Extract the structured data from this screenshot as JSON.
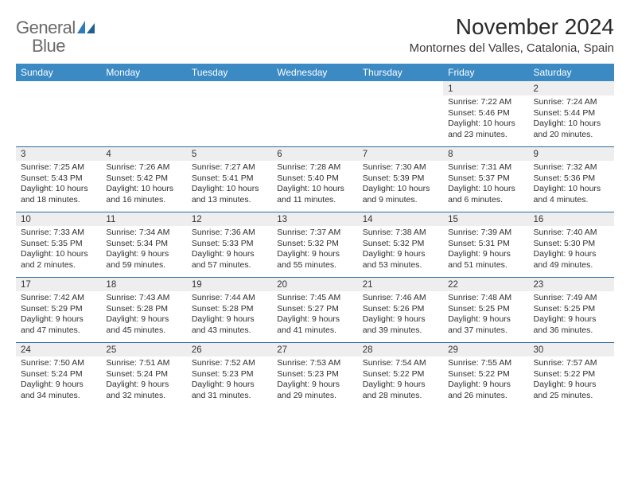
{
  "logo": {
    "word1": "General",
    "word2": "Blue"
  },
  "title": "November 2024",
  "location": "Montornes del Valles, Catalonia, Spain",
  "colors": {
    "header_bg": "#3b8ac4",
    "header_text": "#ffffff",
    "daynum_bg": "#eeeeee",
    "border": "#2c6ca3",
    "body_text": "#2f2f2f",
    "logo_gray": "#6a6a6a",
    "logo_blue": "#2c7ac0"
  },
  "typography": {
    "title_fontsize": 28,
    "location_fontsize": 15,
    "weekday_fontsize": 12,
    "daynum_fontsize": 11.5,
    "cell_fontsize": 10.5
  },
  "weekdays": [
    "Sunday",
    "Monday",
    "Tuesday",
    "Wednesday",
    "Thursday",
    "Friday",
    "Saturday"
  ],
  "weeks": [
    {
      "nums": [
        "",
        "",
        "",
        "",
        "",
        "1",
        "2"
      ],
      "cells": [
        "",
        "",
        "",
        "",
        "",
        "Sunrise: 7:22 AM\nSunset: 5:46 PM\nDaylight: 10 hours and 23 minutes.",
        "Sunrise: 7:24 AM\nSunset: 5:44 PM\nDaylight: 10 hours and 20 minutes."
      ]
    },
    {
      "nums": [
        "3",
        "4",
        "5",
        "6",
        "7",
        "8",
        "9"
      ],
      "cells": [
        "Sunrise: 7:25 AM\nSunset: 5:43 PM\nDaylight: 10 hours and 18 minutes.",
        "Sunrise: 7:26 AM\nSunset: 5:42 PM\nDaylight: 10 hours and 16 minutes.",
        "Sunrise: 7:27 AM\nSunset: 5:41 PM\nDaylight: 10 hours and 13 minutes.",
        "Sunrise: 7:28 AM\nSunset: 5:40 PM\nDaylight: 10 hours and 11 minutes.",
        "Sunrise: 7:30 AM\nSunset: 5:39 PM\nDaylight: 10 hours and 9 minutes.",
        "Sunrise: 7:31 AM\nSunset: 5:37 PM\nDaylight: 10 hours and 6 minutes.",
        "Sunrise: 7:32 AM\nSunset: 5:36 PM\nDaylight: 10 hours and 4 minutes."
      ]
    },
    {
      "nums": [
        "10",
        "11",
        "12",
        "13",
        "14",
        "15",
        "16"
      ],
      "cells": [
        "Sunrise: 7:33 AM\nSunset: 5:35 PM\nDaylight: 10 hours and 2 minutes.",
        "Sunrise: 7:34 AM\nSunset: 5:34 PM\nDaylight: 9 hours and 59 minutes.",
        "Sunrise: 7:36 AM\nSunset: 5:33 PM\nDaylight: 9 hours and 57 minutes.",
        "Sunrise: 7:37 AM\nSunset: 5:32 PM\nDaylight: 9 hours and 55 minutes.",
        "Sunrise: 7:38 AM\nSunset: 5:32 PM\nDaylight: 9 hours and 53 minutes.",
        "Sunrise: 7:39 AM\nSunset: 5:31 PM\nDaylight: 9 hours and 51 minutes.",
        "Sunrise: 7:40 AM\nSunset: 5:30 PM\nDaylight: 9 hours and 49 minutes."
      ]
    },
    {
      "nums": [
        "17",
        "18",
        "19",
        "20",
        "21",
        "22",
        "23"
      ],
      "cells": [
        "Sunrise: 7:42 AM\nSunset: 5:29 PM\nDaylight: 9 hours and 47 minutes.",
        "Sunrise: 7:43 AM\nSunset: 5:28 PM\nDaylight: 9 hours and 45 minutes.",
        "Sunrise: 7:44 AM\nSunset: 5:28 PM\nDaylight: 9 hours and 43 minutes.",
        "Sunrise: 7:45 AM\nSunset: 5:27 PM\nDaylight: 9 hours and 41 minutes.",
        "Sunrise: 7:46 AM\nSunset: 5:26 PM\nDaylight: 9 hours and 39 minutes.",
        "Sunrise: 7:48 AM\nSunset: 5:25 PM\nDaylight: 9 hours and 37 minutes.",
        "Sunrise: 7:49 AM\nSunset: 5:25 PM\nDaylight: 9 hours and 36 minutes."
      ]
    },
    {
      "nums": [
        "24",
        "25",
        "26",
        "27",
        "28",
        "29",
        "30"
      ],
      "cells": [
        "Sunrise: 7:50 AM\nSunset: 5:24 PM\nDaylight: 9 hours and 34 minutes.",
        "Sunrise: 7:51 AM\nSunset: 5:24 PM\nDaylight: 9 hours and 32 minutes.",
        "Sunrise: 7:52 AM\nSunset: 5:23 PM\nDaylight: 9 hours and 31 minutes.",
        "Sunrise: 7:53 AM\nSunset: 5:23 PM\nDaylight: 9 hours and 29 minutes.",
        "Sunrise: 7:54 AM\nSunset: 5:22 PM\nDaylight: 9 hours and 28 minutes.",
        "Sunrise: 7:55 AM\nSunset: 5:22 PM\nDaylight: 9 hours and 26 minutes.",
        "Sunrise: 7:57 AM\nSunset: 5:22 PM\nDaylight: 9 hours and 25 minutes."
      ]
    }
  ]
}
